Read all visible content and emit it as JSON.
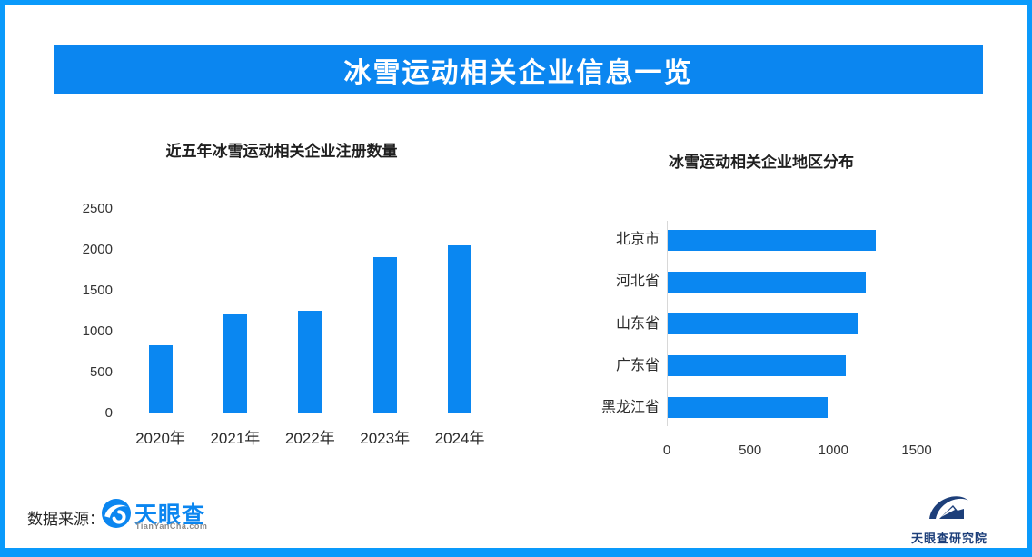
{
  "page": {
    "border_color": "#0a9afb",
    "background": "#ffffff"
  },
  "banner": {
    "title": "冰雪运动相关企业信息一览",
    "bg_color": "#0b86f0",
    "text_color": "#ffffff"
  },
  "chart_data": [
    {
      "type": "bar",
      "orientation": "vertical",
      "title": "近五年冰雪运动相关企业注册数量",
      "categories": [
        "2020年",
        "2021年",
        "2022年",
        "2023年",
        "2024年"
      ],
      "values": [
        820,
        1200,
        1250,
        1900,
        2050
      ],
      "ylim": [
        0,
        2500
      ],
      "yticks": [
        0,
        500,
        1000,
        1500,
        2000,
        2500
      ],
      "bar_color": "#0a87f1",
      "grid": false,
      "legend": "none"
    },
    {
      "type": "bar",
      "orientation": "horizontal",
      "title": "冰雪运动相关企业地区分布",
      "categories": [
        "北京市",
        "河北省",
        "山东省",
        "广东省",
        "黑龙江省"
      ],
      "values": [
        1250,
        1190,
        1140,
        1070,
        960
      ],
      "xlim": [
        0,
        1500
      ],
      "xticks": [
        0,
        500,
        1000,
        1500
      ],
      "bar_color": "#0a87f1",
      "grid": false,
      "legend": "none"
    }
  ],
  "footer": {
    "source_label": "数据来源：",
    "tianyancha_logo": {
      "icon": "tianyancha-eye-icon",
      "name": "天眼查",
      "subtitle": "TianYanCha.com",
      "brand_color": "#0b86f0"
    },
    "research_logo": {
      "icon": "tianyancha-research-arch-icon",
      "name": "天眼查研究院",
      "brand_color": "#1d3f7a"
    }
  }
}
